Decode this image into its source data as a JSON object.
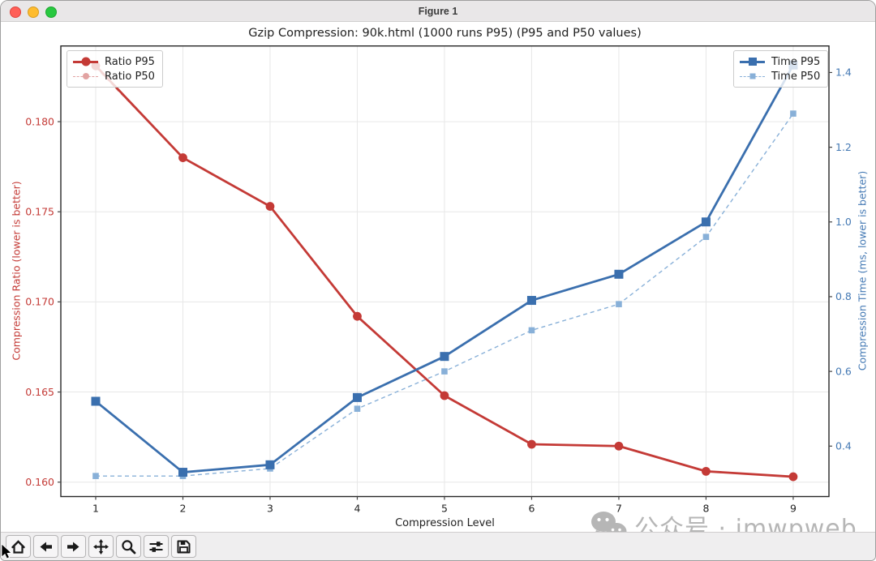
{
  "window": {
    "title": "Figure 1"
  },
  "watermark": {
    "text": "公众号 · imwpweb"
  },
  "toolbar": {
    "buttons": [
      "home",
      "back",
      "forward",
      "pan",
      "zoom",
      "configure-subplots",
      "save"
    ]
  },
  "chart_data": {
    "type": "line",
    "title": "Gzip Compression: 90k.html (1000 runs P95) (P95 and P50 values)",
    "xlabel": "Compression Level",
    "x": [
      1,
      2,
      3,
      4,
      5,
      6,
      7,
      8,
      9
    ],
    "x_range": [
      0.6,
      9.41
    ],
    "grid": true,
    "colors": {
      "grid": "#e7e7e7",
      "spine": "#262626",
      "tick": "#444444",
      "title": "#1f1f1f"
    },
    "left_axis": {
      "label": "Compression Ratio (lower is better)",
      "color": "#c43a36",
      "ticks": [
        0.16,
        0.165,
        0.17,
        0.175,
        0.18
      ],
      "tick_labels": [
        "0.160",
        "0.165",
        "0.170",
        "0.175",
        "0.180"
      ],
      "range": [
        0.1592,
        0.1842
      ]
    },
    "right_axis": {
      "label": "Compression Time (ms, lower is better)",
      "color": "#4479b4",
      "ticks": [
        0.4,
        0.6,
        0.8,
        1.0,
        1.2,
        1.4
      ],
      "tick_labels": [
        "0.4",
        "0.6",
        "0.8",
        "1.0",
        "1.2",
        "1.4"
      ],
      "range": [
        0.265,
        1.471
      ]
    },
    "series": [
      {
        "name": "Ratio P95",
        "axis": "left",
        "style": "solid",
        "marker": "circle",
        "color": "#c43a36",
        "values": [
          0.1831,
          0.178,
          0.1753,
          0.1692,
          0.1648,
          0.1621,
          0.162,
          0.1606,
          0.1603
        ]
      },
      {
        "name": "Ratio P50",
        "axis": "left",
        "style": "dashed",
        "marker": "circle",
        "color": "#e2a3a2",
        "values": [
          0.183,
          0.178,
          0.1753,
          0.1692,
          0.1648,
          0.1621,
          0.162,
          0.1606,
          0.1603
        ]
      },
      {
        "name": "Time P95",
        "axis": "right",
        "style": "solid",
        "marker": "square",
        "color": "#3a6fae",
        "values": [
          0.52,
          0.33,
          0.35,
          0.53,
          0.64,
          0.79,
          0.86,
          1.0,
          1.42
        ]
      },
      {
        "name": "Time P50",
        "axis": "right",
        "style": "dashed",
        "marker": "square",
        "color": "#88b0d8",
        "values": [
          0.32,
          0.32,
          0.34,
          0.5,
          0.6,
          0.71,
          0.78,
          0.96,
          1.29
        ]
      }
    ],
    "legends": {
      "left": [
        "Ratio P95",
        "Ratio P50"
      ],
      "right": [
        "Time P95",
        "Time P50"
      ]
    }
  }
}
